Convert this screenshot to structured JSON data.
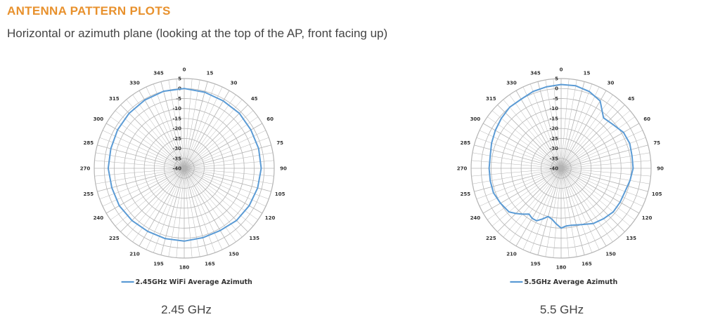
{
  "header": {
    "title": "ANTENNA PATTERN PLOTS",
    "subtitle": "Horizontal or azimuth plane (looking at the top of the AP, front facing up)"
  },
  "colors": {
    "title": "#e8912d",
    "series": "#5b9bd5",
    "grid": "#b4b4b4"
  },
  "chart_data": [
    {
      "type": "line",
      "projection": "polar",
      "caption": "2.45 GHz",
      "angle_labels": [
        "0",
        "15",
        "30",
        "45",
        "60",
        "75",
        "90",
        "105",
        "120",
        "135",
        "150",
        "165",
        "180",
        "195",
        "210",
        "225",
        "240",
        "255",
        "270",
        "285",
        "300",
        "315",
        "330",
        "345"
      ],
      "radial_ticks": [
        "5",
        "0",
        "-5",
        "-10",
        "-15",
        "-20",
        "-25",
        "-30",
        "-35",
        "-40"
      ],
      "rlim": [
        -40,
        5
      ],
      "legend_position": "bottom",
      "series": [
        {
          "name": "2.45GHz WiFi Average Azimuth",
          "angles": [
            0,
            15,
            30,
            45,
            60,
            75,
            90,
            105,
            120,
            135,
            150,
            165,
            180,
            195,
            210,
            225,
            240,
            255,
            270,
            285,
            300,
            315,
            330,
            345
          ],
          "values": [
            0,
            -0.5,
            -1,
            -1,
            -1.5,
            -1.5,
            -1.5,
            -2,
            -2.5,
            -3,
            -4,
            -4,
            -3.5,
            -3.5,
            -3.5,
            -3,
            -2.5,
            -2.5,
            -2,
            -2,
            -1.5,
            -1,
            -0.5,
            0
          ]
        }
      ]
    },
    {
      "type": "line",
      "projection": "polar",
      "caption": "5.5 GHz",
      "angle_labels": [
        "0",
        "15",
        "30",
        "45",
        "60",
        "75",
        "90",
        "105",
        "120",
        "135",
        "150",
        "165",
        "180",
        "195",
        "210",
        "225",
        "240",
        "255",
        "270",
        "285",
        "300",
        "315",
        "330",
        "345"
      ],
      "radial_ticks": [
        "5",
        "0",
        "-5",
        "-10",
        "-15",
        "-20",
        "-25",
        "-30",
        "-35",
        "-40"
      ],
      "rlim": [
        -40,
        5
      ],
      "legend_position": "bottom",
      "series": [
        {
          "name": "5.5GHz Average Azimuth",
          "angles": [
            0,
            10,
            20,
            30,
            40,
            50,
            60,
            70,
            80,
            90,
            100,
            110,
            120,
            130,
            140,
            150,
            160,
            170,
            175,
            180,
            185,
            190,
            195,
            200,
            205,
            210,
            215,
            220,
            225,
            230,
            240,
            250,
            260,
            270,
            280,
            290,
            300,
            310,
            320,
            330,
            340,
            350
          ],
          "values": [
            2,
            2,
            1,
            -1,
            -7,
            -6,
            -4,
            -3.5,
            -4,
            -4,
            -5,
            -6,
            -6,
            -6,
            -7,
            -8,
            -10,
            -11,
            -11,
            -10,
            -12,
            -14,
            -15,
            -13,
            -11,
            -11,
            -12,
            -10,
            -8,
            -6,
            -5,
            -4,
            -4,
            -4,
            -4,
            -3,
            -2,
            -1,
            0,
            0,
            1,
            1.5
          ]
        }
      ]
    }
  ]
}
